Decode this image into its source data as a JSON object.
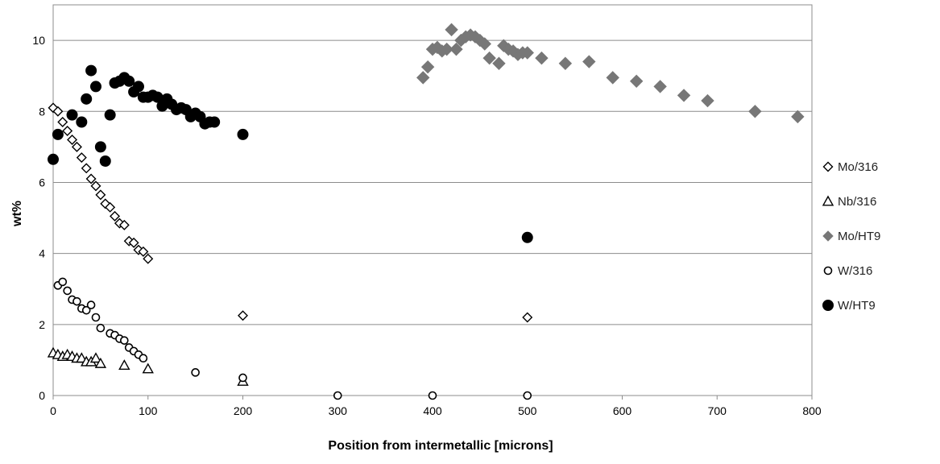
{
  "chart_data": {
    "type": "scatter",
    "title": "",
    "xlabel": "Position from intermetallic [microns]",
    "ylabel": "wt%",
    "xlim": [
      0,
      800
    ],
    "ylim": [
      0,
      11
    ],
    "x_ticks": [
      0,
      100,
      200,
      300,
      400,
      500,
      600,
      700,
      800
    ],
    "y_ticks": [
      0,
      2,
      4,
      6,
      8,
      10
    ],
    "grid": "horizontal",
    "legend_position": "right",
    "series": [
      {
        "name": "Mo/316",
        "marker": "diamond-open",
        "color": "#000000",
        "points": [
          [
            0,
            8.1
          ],
          [
            5,
            8.0
          ],
          [
            10,
            7.7
          ],
          [
            15,
            7.45
          ],
          [
            20,
            7.2
          ],
          [
            25,
            7.0
          ],
          [
            30,
            6.7
          ],
          [
            35,
            6.4
          ],
          [
            40,
            6.1
          ],
          [
            45,
            5.9
          ],
          [
            50,
            5.65
          ],
          [
            55,
            5.4
          ],
          [
            60,
            5.3
          ],
          [
            65,
            5.05
          ],
          [
            70,
            4.85
          ],
          [
            75,
            4.8
          ],
          [
            80,
            4.35
          ],
          [
            85,
            4.3
          ],
          [
            90,
            4.1
          ],
          [
            95,
            4.05
          ],
          [
            100,
            3.85
          ],
          [
            200,
            2.25
          ],
          [
            500,
            2.2
          ]
        ]
      },
      {
        "name": "Nb/316",
        "marker": "triangle-open",
        "color": "#000000",
        "points": [
          [
            0,
            1.2
          ],
          [
            5,
            1.15
          ],
          [
            10,
            1.1
          ],
          [
            15,
            1.15
          ],
          [
            20,
            1.1
          ],
          [
            25,
            1.05
          ],
          [
            30,
            1.05
          ],
          [
            35,
            0.95
          ],
          [
            40,
            0.95
          ],
          [
            45,
            1.05
          ],
          [
            50,
            0.9
          ],
          [
            75,
            0.85
          ],
          [
            100,
            0.75
          ],
          [
            200,
            0.4
          ]
        ]
      },
      {
        "name": "Mo/HT9",
        "marker": "diamond-filled",
        "color": "#777777",
        "points": [
          [
            390,
            8.95
          ],
          [
            395,
            9.25
          ],
          [
            400,
            9.75
          ],
          [
            405,
            9.8
          ],
          [
            410,
            9.7
          ],
          [
            415,
            9.75
          ],
          [
            420,
            10.3
          ],
          [
            425,
            9.75
          ],
          [
            430,
            10.0
          ],
          [
            435,
            10.1
          ],
          [
            440,
            10.15
          ],
          [
            445,
            10.1
          ],
          [
            450,
            10.0
          ],
          [
            455,
            9.9
          ],
          [
            460,
            9.5
          ],
          [
            470,
            9.35
          ],
          [
            475,
            9.85
          ],
          [
            480,
            9.75
          ],
          [
            485,
            9.7
          ],
          [
            490,
            9.6
          ],
          [
            495,
            9.65
          ],
          [
            500,
            9.65
          ],
          [
            515,
            9.5
          ],
          [
            540,
            9.35
          ],
          [
            565,
            9.4
          ],
          [
            590,
            8.95
          ],
          [
            615,
            8.85
          ],
          [
            640,
            8.7
          ],
          [
            665,
            8.45
          ],
          [
            690,
            8.3
          ],
          [
            740,
            8.0
          ],
          [
            785,
            7.85
          ]
        ]
      },
      {
        "name": "W/316",
        "marker": "circle-open",
        "color": "#000000",
        "points": [
          [
            5,
            3.1
          ],
          [
            10,
            3.2
          ],
          [
            15,
            2.95
          ],
          [
            20,
            2.7
          ],
          [
            25,
            2.65
          ],
          [
            30,
            2.45
          ],
          [
            35,
            2.4
          ],
          [
            40,
            2.55
          ],
          [
            45,
            2.2
          ],
          [
            50,
            1.9
          ],
          [
            60,
            1.75
          ],
          [
            65,
            1.7
          ],
          [
            70,
            1.6
          ],
          [
            75,
            1.55
          ],
          [
            80,
            1.35
          ],
          [
            85,
            1.25
          ],
          [
            90,
            1.15
          ],
          [
            95,
            1.05
          ],
          [
            150,
            0.65
          ],
          [
            200,
            0.5
          ],
          [
            300,
            0.0
          ],
          [
            400,
            0.0
          ],
          [
            500,
            0.0
          ]
        ]
      },
      {
        "name": "W/HT9",
        "marker": "circle-filled",
        "color": "#000000",
        "points": [
          [
            0,
            6.65
          ],
          [
            5,
            7.35
          ],
          [
            20,
            7.9
          ],
          [
            30,
            7.7
          ],
          [
            35,
            8.35
          ],
          [
            40,
            9.15
          ],
          [
            45,
            8.7
          ],
          [
            50,
            7.0
          ],
          [
            55,
            6.6
          ],
          [
            60,
            7.9
          ],
          [
            65,
            8.8
          ],
          [
            70,
            8.85
          ],
          [
            75,
            8.95
          ],
          [
            80,
            8.85
          ],
          [
            85,
            8.55
          ],
          [
            90,
            8.7
          ],
          [
            95,
            8.4
          ],
          [
            100,
            8.4
          ],
          [
            105,
            8.45
          ],
          [
            110,
            8.4
          ],
          [
            115,
            8.15
          ],
          [
            120,
            8.35
          ],
          [
            125,
            8.2
          ],
          [
            130,
            8.05
          ],
          [
            135,
            8.1
          ],
          [
            140,
            8.05
          ],
          [
            145,
            7.85
          ],
          [
            150,
            7.95
          ],
          [
            155,
            7.85
          ],
          [
            160,
            7.65
          ],
          [
            165,
            7.7
          ],
          [
            170,
            7.7
          ],
          [
            200,
            7.35
          ],
          [
            500,
            4.45
          ]
        ]
      }
    ]
  }
}
